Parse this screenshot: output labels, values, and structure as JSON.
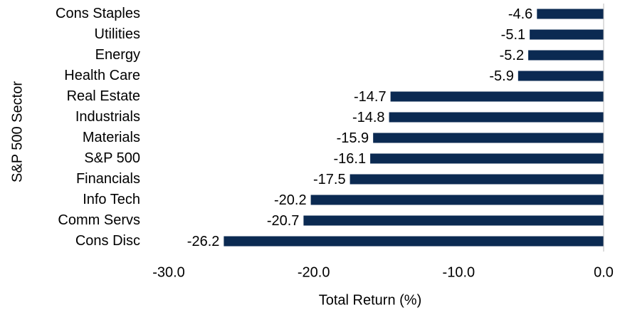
{
  "chart_data": {
    "type": "barh",
    "categories": [
      "Cons Staples",
      "Utilities",
      "Energy",
      "Health Care",
      "Real Estate",
      "Industrials",
      "Materials",
      "S&P 500",
      "Financials",
      "Info Tech",
      "Comm Servs",
      "Cons Disc"
    ],
    "values": [
      -4.6,
      -5.1,
      -5.2,
      -5.9,
      -14.7,
      -14.8,
      -15.9,
      -16.1,
      -17.5,
      -20.2,
      -20.7,
      -26.2
    ],
    "color": "#0b2a52",
    "xlim": [
      -30,
      0
    ],
    "xticks": [
      {
        "value": -30,
        "label": "-30.0"
      },
      {
        "value": -20,
        "label": "-20.0"
      },
      {
        "value": -10,
        "label": "-10.0"
      },
      {
        "value": 0,
        "label": "0.0"
      }
    ],
    "xlabel": "Total Return (%)",
    "ylabel": "S&P 500 Sector"
  }
}
